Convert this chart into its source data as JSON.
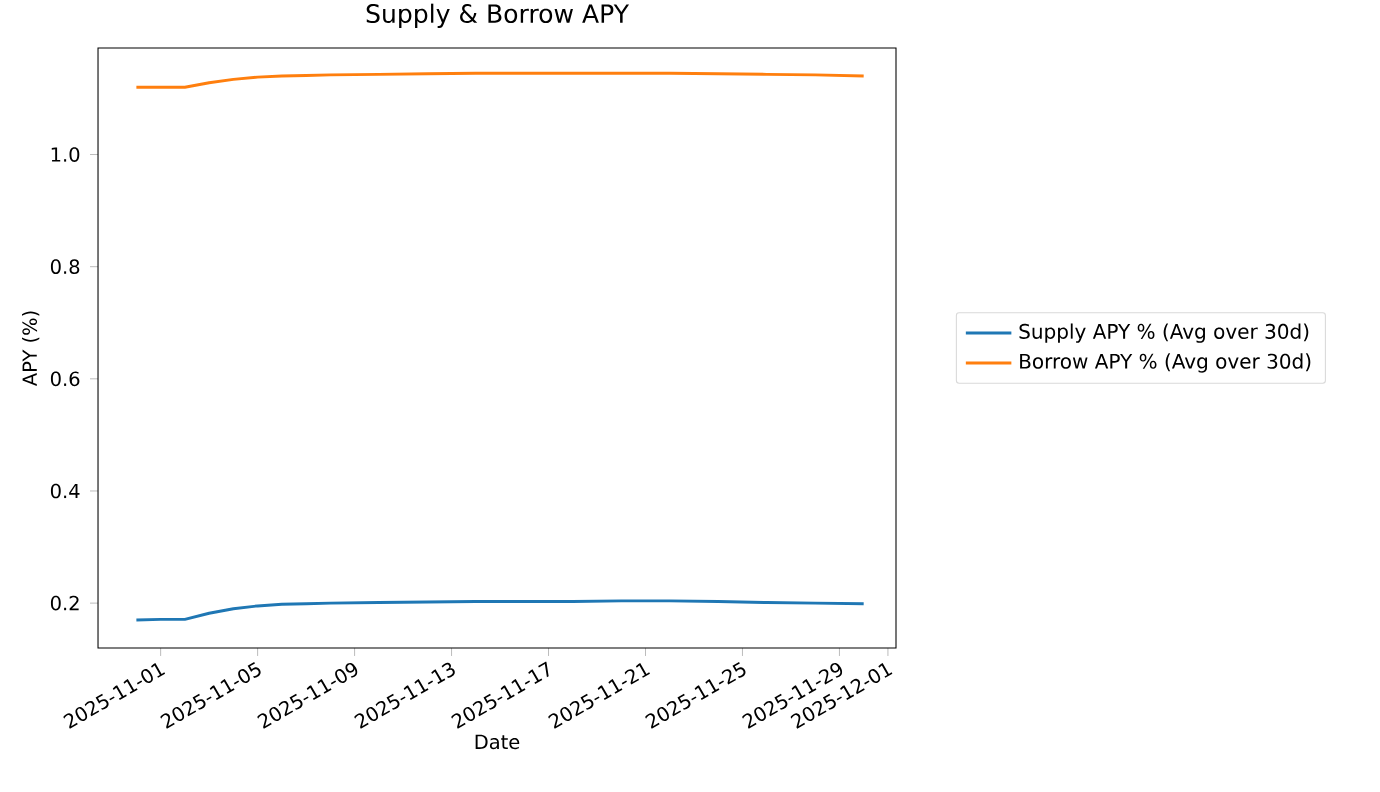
{
  "chart_data": {
    "type": "line",
    "title": "Supply & Borrow APY",
    "xlabel": "Date",
    "ylabel": "APY (%)",
    "x": [
      "2025-10-31",
      "2025-11-01",
      "2025-11-02",
      "2025-11-03",
      "2025-11-04",
      "2025-11-05",
      "2025-11-06",
      "2025-11-07",
      "2025-11-08",
      "2025-11-10",
      "2025-11-12",
      "2025-11-14",
      "2025-11-16",
      "2025-11-18",
      "2025-11-20",
      "2025-11-22",
      "2025-11-24",
      "2025-11-26",
      "2025-11-28",
      "2025-11-30"
    ],
    "series": [
      {
        "name": "Supply APY % (Avg over 30d)",
        "color": "#1f77b4",
        "values": [
          0.17,
          0.171,
          0.171,
          0.182,
          0.19,
          0.195,
          0.198,
          0.199,
          0.2,
          0.201,
          0.202,
          0.203,
          0.203,
          0.203,
          0.204,
          0.204,
          0.203,
          0.201,
          0.2,
          0.199
        ]
      },
      {
        "name": "Borrow APY % (Avg over 30d)",
        "color": "#ff7f0e",
        "values": [
          1.12,
          1.12,
          1.12,
          1.128,
          1.134,
          1.138,
          1.14,
          1.141,
          1.142,
          1.143,
          1.144,
          1.145,
          1.145,
          1.145,
          1.145,
          1.145,
          1.144,
          1.143,
          1.142,
          1.14
        ]
      }
    ],
    "xlim": [
      "2025-10-29T10:00",
      "2025-12-01T08:00"
    ],
    "xticks": [
      "2025-11-01",
      "2025-11-05",
      "2025-11-09",
      "2025-11-13",
      "2025-11-17",
      "2025-11-21",
      "2025-11-25",
      "2025-11-29",
      "2025-12-01"
    ],
    "ylim": [
      0.12,
      1.19
    ],
    "yticks": [
      {
        "value": 0.2,
        "label": "0.2"
      },
      {
        "value": 0.4,
        "label": "0.4"
      },
      {
        "value": 0.6,
        "label": "0.6"
      },
      {
        "value": 0.8,
        "label": "0.8"
      },
      {
        "value": 1.0,
        "label": "1.0"
      }
    ],
    "legend": "right",
    "grid": false
  }
}
